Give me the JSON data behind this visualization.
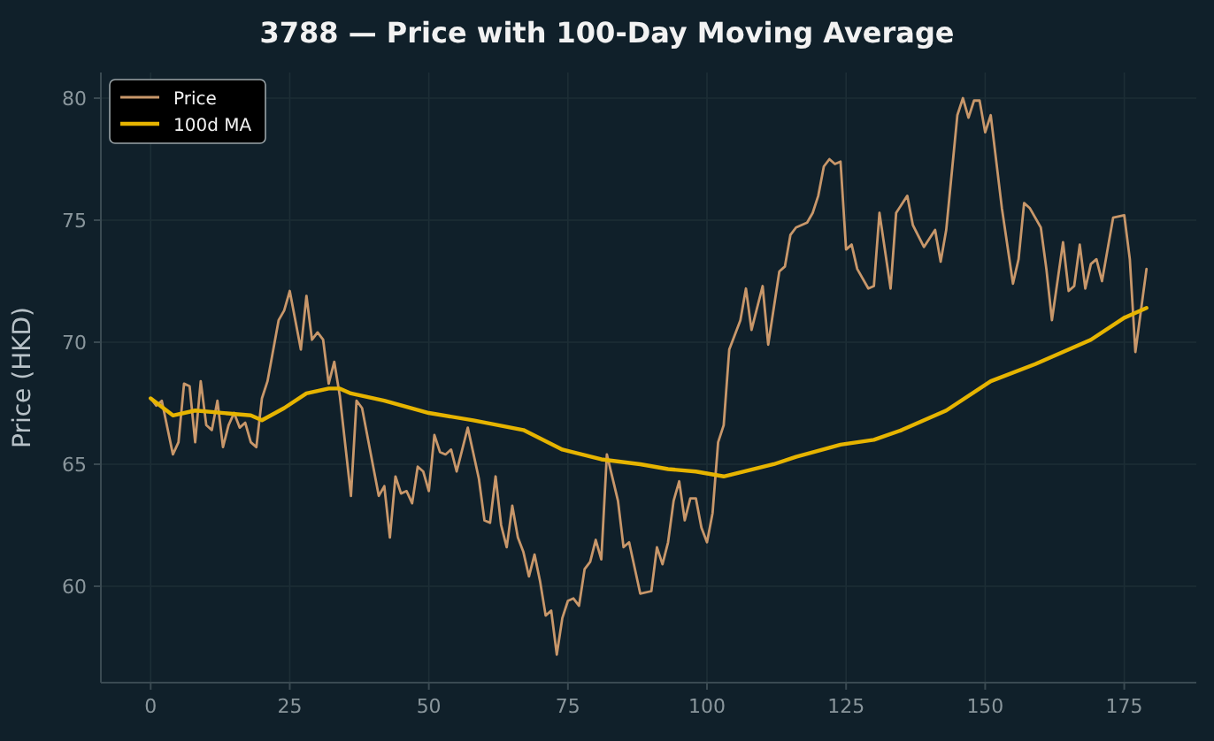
{
  "chart_data": {
    "type": "line",
    "title": "3788 — Price with 100-Day Moving Average",
    "ylabel": "Price (HKD)",
    "xlim": [
      -8.95,
      187.95
    ],
    "xticks": [
      0,
      25,
      50,
      75,
      100,
      125,
      150,
      175
    ],
    "ylim": [
      56.05,
      81.05
    ],
    "yticks": [
      60,
      65,
      70,
      75,
      80
    ],
    "grid": true,
    "legend": "top left",
    "line_style": "solid",
    "marker": "none",
    "series": [
      {
        "name": "Price",
        "color": "#c8976a",
        "x": [
          0,
          1,
          2,
          4,
          5,
          6,
          7,
          8,
          9,
          10,
          11,
          12,
          13,
          14,
          15,
          16,
          17,
          18,
          19,
          20,
          21,
          23,
          24,
          25,
          27,
          28,
          29,
          30,
          31,
          32,
          33,
          34,
          36,
          37,
          38,
          41,
          42,
          43,
          44,
          45,
          46,
          47,
          48,
          49,
          50,
          51,
          52,
          53,
          54,
          55,
          57,
          59,
          60,
          61,
          62,
          63,
          64,
          65,
          66,
          67,
          68,
          69,
          70,
          71,
          72,
          73,
          74,
          75,
          76,
          77,
          78,
          79,
          80,
          81,
          82,
          84,
          85,
          86,
          88,
          90,
          91,
          92,
          93,
          94,
          95,
          96,
          97,
          98,
          99,
          100,
          101,
          102,
          103,
          104,
          106,
          107,
          108,
          110,
          111,
          113,
          114,
          115,
          116,
          118,
          119,
          120,
          121,
          122,
          123,
          124,
          125,
          126,
          127,
          129,
          130,
          131,
          133,
          134,
          136,
          137,
          139,
          141,
          142,
          143,
          145,
          146,
          147,
          148,
          149,
          150,
          151,
          153,
          155,
          156,
          157,
          158,
          160,
          161,
          162,
          164,
          165,
          166,
          167,
          168,
          169,
          170,
          171,
          173,
          175,
          176,
          177,
          179
        ],
        "values": [
          67.7,
          67.4,
          67.6,
          65.4,
          65.9,
          68.3,
          68.2,
          65.9,
          68.4,
          66.6,
          66.4,
          67.6,
          65.7,
          66.6,
          67.1,
          66.5,
          66.7,
          65.9,
          65.7,
          67.7,
          68.4,
          70.9,
          71.3,
          72.1,
          69.7,
          71.9,
          70.1,
          70.4,
          70.1,
          68.3,
          69.2,
          67.8,
          63.7,
          67.6,
          67.3,
          63.7,
          64.1,
          62.0,
          64.5,
          63.8,
          63.9,
          63.4,
          64.9,
          64.7,
          63.9,
          66.2,
          65.5,
          65.4,
          65.6,
          64.7,
          66.5,
          64.4,
          62.7,
          62.6,
          64.5,
          62.5,
          61.6,
          63.3,
          62.0,
          61.4,
          60.4,
          61.3,
          60.2,
          58.8,
          59.0,
          57.2,
          58.7,
          59.4,
          59.5,
          59.2,
          60.7,
          61.0,
          61.9,
          61.1,
          65.4,
          63.5,
          61.6,
          61.8,
          59.7,
          59.8,
          61.6,
          60.9,
          61.8,
          63.5,
          64.3,
          62.7,
          63.6,
          63.6,
          62.4,
          61.8,
          63.0,
          65.9,
          66.6,
          69.7,
          70.9,
          72.2,
          70.5,
          72.3,
          69.9,
          72.9,
          73.1,
          74.4,
          74.7,
          74.9,
          75.3,
          76.0,
          77.2,
          77.5,
          77.3,
          77.4,
          73.8,
          74.0,
          73.0,
          72.2,
          72.3,
          75.3,
          72.2,
          75.3,
          76.0,
          74.8,
          73.9,
          74.6,
          73.3,
          74.6,
          79.3,
          80.0,
          79.2,
          79.9,
          79.9,
          78.6,
          79.3,
          75.5,
          72.4,
          73.4,
          75.7,
          75.5,
          74.7,
          73.0,
          70.9,
          74.1,
          72.1,
          72.3,
          74.0,
          72.2,
          73.2,
          73.4,
          72.5,
          75.1,
          75.2,
          73.4,
          69.6,
          73.0
        ]
      },
      {
        "name": "100d MA",
        "color": "#e6b400",
        "x": [
          0,
          4,
          8,
          18,
          20,
          24,
          28,
          32,
          34,
          36,
          42,
          50,
          58,
          67,
          74,
          81,
          88,
          93,
          98,
          103,
          112,
          116,
          124,
          130,
          135,
          143,
          151,
          159,
          164,
          169,
          175,
          179
        ],
        "values": [
          67.7,
          67.0,
          67.2,
          67.0,
          66.8,
          67.3,
          67.9,
          68.1,
          68.1,
          67.9,
          67.6,
          67.1,
          66.8,
          66.4,
          65.6,
          65.2,
          65.0,
          64.8,
          64.7,
          64.5,
          65.0,
          65.3,
          65.8,
          66.0,
          66.4,
          67.2,
          68.4,
          69.1,
          69.6,
          70.1,
          71.0,
          71.4
        ]
      }
    ]
  }
}
